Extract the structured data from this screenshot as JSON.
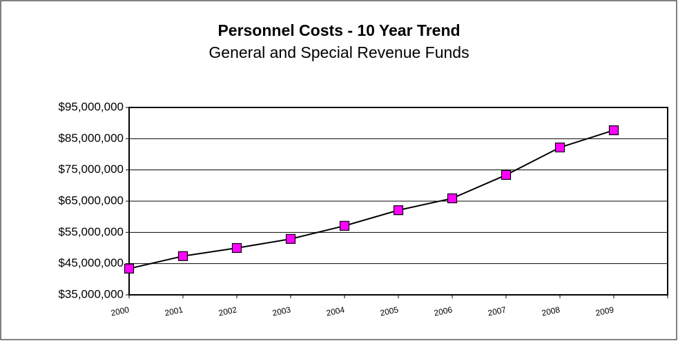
{
  "chart_data": {
    "type": "line",
    "title": "Personnel Costs - 10 Year Trend",
    "subtitle": "General and Special Revenue Funds",
    "categories": [
      "2000",
      "2001",
      "2002",
      "2003",
      "2004",
      "2005",
      "2006",
      "2007",
      "2008",
      "2009"
    ],
    "series": [
      {
        "name": "Personnel Costs",
        "color": "#ff00ff",
        "line_color": "#000000",
        "values": [
          43400000,
          47400000,
          50000000,
          52900000,
          57100000,
          62100000,
          65900000,
          73400000,
          82200000,
          87700000
        ]
      }
    ],
    "ylim": [
      35000000,
      95000000
    ],
    "yticks": [
      {
        "value": 35000000,
        "label": "$35,000,000"
      },
      {
        "value": 45000000,
        "label": "$45,000,000"
      },
      {
        "value": 55000000,
        "label": "$55,000,000"
      },
      {
        "value": 65000000,
        "label": "$65,000,000"
      },
      {
        "value": 75000000,
        "label": "$75,000,000"
      },
      {
        "value": 85000000,
        "label": "$85,000,000"
      },
      {
        "value": 95000000,
        "label": "$95,000,000"
      }
    ],
    "grid": true
  }
}
